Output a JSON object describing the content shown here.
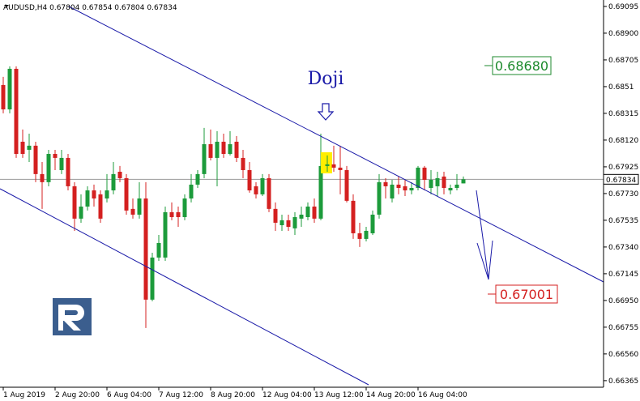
{
  "chart_data": {
    "type": "candlestick",
    "header": "AUDUSD,H4  0.67804 0.67854 0.67804 0.67834",
    "categories": [
      "1 Aug 2019",
      null,
      null,
      null,
      null,
      null,
      null,
      null,
      "2 Aug 20:00",
      null,
      null,
      null,
      null,
      null,
      null,
      null,
      "6 Aug 04:00",
      null,
      null,
      null,
      null,
      null,
      null,
      null,
      "7 Aug 12:00",
      null,
      null,
      null,
      null,
      null,
      null,
      null,
      "8 Aug 20:00",
      null,
      null,
      null,
      null,
      null,
      null,
      null,
      "12 Aug 04:00",
      null,
      null,
      null,
      null,
      null,
      null,
      null,
      "13 Aug 12:00",
      null,
      null,
      null,
      null,
      null,
      null,
      null,
      "14 Aug 20:00",
      null,
      null,
      null,
      null,
      null,
      null,
      null,
      "16 Aug 04:00",
      null,
      null,
      null,
      null,
      null,
      null,
      null
    ],
    "open": [
      0.68522,
      0.68344,
      0.6864,
      0.68108,
      0.68049,
      0.68079,
      0.67872,
      0.67813,
      0.68019,
      0.67901,
      0.6799,
      0.67783,
      0.67547,
      0.67635,
      0.67753,
      0.67724,
      0.67694,
      0.67753,
      0.67889,
      0.67842,
      0.67618,
      0.67576,
      0.67694,
      0.66956,
      0.67263,
      0.67263,
      0.67594,
      0.67594,
      0.67558,
      0.67694,
      0.67795,
      0.67872,
      0.6809,
      0.6799,
      0.68108,
      0.68019,
      0.68108,
      0.6799,
      0.67901,
      0.67783,
      0.67724,
      0.67842,
      0.67618,
      0.67499,
      0.67535,
      0.67476,
      0.67547,
      0.67558,
      0.67635,
      0.67547,
      0.67931,
      0.67943,
      0.67919,
      0.67901,
      0.67677,
      0.6744,
      0.67399,
      0.6744,
      0.67576,
      0.67813,
      0.67694,
      0.67795,
      0.67783,
      0.67753,
      0.67771,
      0.67919,
      0.67771,
      0.67783,
      0.67854,
      0.67753,
      0.67771,
      0.67804
    ],
    "high": [
      0.68581,
      0.68658,
      0.68658,
      0.68197,
      0.68167,
      0.68108,
      0.6796,
      0.68049,
      0.68049,
      0.68049,
      0.68019,
      0.67813,
      0.67724,
      0.67783,
      0.67795,
      0.67753,
      0.67872,
      0.6796,
      0.67931,
      0.67872,
      0.67694,
      0.67813,
      0.67813,
      0.67298,
      0.67428,
      0.67635,
      0.67665,
      0.67635,
      0.67724,
      0.67872,
      0.67901,
      0.68209,
      0.68197,
      0.68185,
      0.68167,
      0.68185,
      0.68149,
      0.68049,
      0.6796,
      0.67813,
      0.67872,
      0.67872,
      0.67665,
      0.67576,
      0.67576,
      0.67594,
      0.67635,
      0.67665,
      0.67694,
      0.68167,
      0.68008,
      0.68079,
      0.68079,
      0.67931,
      0.67724,
      0.67517,
      0.67487,
      0.67606,
      0.67872,
      0.67842,
      0.6783,
      0.67854,
      0.6783,
      0.67813,
      0.67931,
      0.67931,
      0.67901,
      0.67889,
      0.67889,
      0.67795,
      0.67872,
      0.67854
    ],
    "low": [
      0.68315,
      0.68315,
      0.6799,
      0.6799,
      0.6796,
      0.67813,
      0.67618,
      0.67783,
      0.67901,
      0.67872,
      0.67753,
      0.67458,
      0.67517,
      0.67606,
      0.67635,
      0.67517,
      0.67665,
      0.67724,
      0.67813,
      0.67576,
      0.67547,
      0.67547,
      0.66749,
      0.66944,
      0.67239,
      0.67239,
      0.67535,
      0.67487,
      0.67535,
      0.67665,
      0.67771,
      0.67842,
      0.67972,
      0.67783,
      0.6799,
      0.68008,
      0.6796,
      0.67842,
      0.67736,
      0.67694,
      0.67712,
      0.67594,
      0.67458,
      0.67458,
      0.67458,
      0.67428,
      0.67487,
      0.67535,
      0.67517,
      0.67535,
      0.67889,
      0.67889,
      0.67724,
      0.67665,
      0.67399,
      0.6734,
      0.67381,
      0.67428,
      0.67547,
      0.67694,
      0.67665,
      0.67724,
      0.67712,
      0.67724,
      0.67753,
      0.67753,
      0.67724,
      0.67712,
      0.67724,
      0.67724,
      0.67753,
      0.67804
    ],
    "close": [
      0.68344,
      0.6864,
      0.68019,
      0.68019,
      0.68079,
      0.67872,
      0.67813,
      0.68019,
      0.6799,
      0.6799,
      0.67783,
      0.67547,
      0.67635,
      0.67753,
      0.67694,
      0.67547,
      0.67753,
      0.67872,
      0.67842,
      0.67606,
      0.67576,
      0.67694,
      0.66956,
      0.67263,
      0.67369,
      0.67594,
      0.67558,
      0.67558,
      0.67694,
      0.67795,
      0.67872,
      0.6809,
      0.6799,
      0.68108,
      0.68019,
      0.6809,
      0.6799,
      0.67901,
      0.67753,
      0.67724,
      0.67842,
      0.67618,
      0.67517,
      0.67535,
      0.67487,
      0.67558,
      0.67576,
      0.67635,
      0.67547,
      0.67931,
      0.67943,
      0.67919,
      0.67901,
      0.67677,
      0.6744,
      0.67399,
      0.67458,
      0.67576,
      0.67813,
      0.67783,
      0.67795,
      0.67771,
      0.67753,
      0.67771,
      0.67919,
      0.6783,
      0.6783,
      0.67842,
      0.67771,
      0.67771,
      0.67795,
      0.67834
    ],
    "up_color": "#1c9b3b",
    "down_color": "#d42020",
    "ylim": [
      0.66317,
      0.69142
    ],
    "yticks": [
      0.69095,
      {
        "value": 0.689,
        "label": "0.68900"
      },
      0.68705,
      0.6851,
      0.68315,
      {
        "value": 0.6812,
        "label": "0.68120"
      },
      0.67925,
      {
        "value": 0.6773,
        "label": "0.67730"
      },
      0.67535,
      {
        "value": 0.6734,
        "label": "0.67340"
      },
      0.67145,
      {
        "value": 0.6695,
        "label": "0.66950"
      },
      0.66755,
      {
        "value": 0.6656,
        "label": "0.66560"
      },
      0.66365
    ],
    "last_price": 0.67834,
    "annotations": {
      "pattern": "Doji",
      "target_high": "0.68680",
      "target_low": "0.67001"
    }
  }
}
